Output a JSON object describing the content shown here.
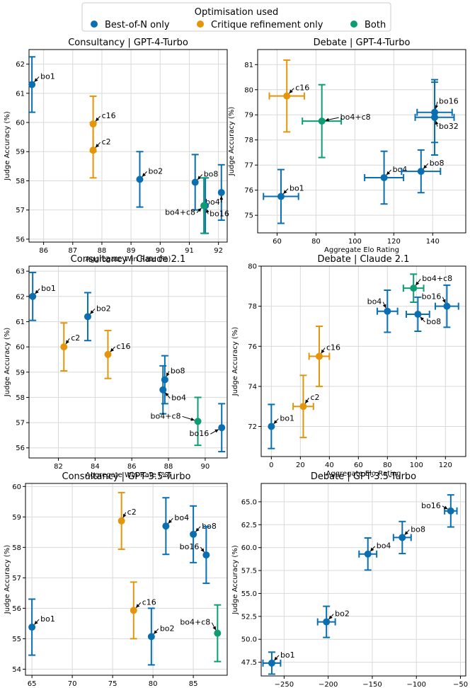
{
  "legend": {
    "title": "Optimisation used",
    "entries": [
      {
        "label": "Best-of-N only",
        "color": "#0a6fb0"
      },
      {
        "label": "Critique refinement only",
        "color": "#e3960b"
      },
      {
        "label": "Both",
        "color": "#0e9c74"
      }
    ]
  },
  "chart_data": [
    {
      "type": "scatter",
      "title": "Consultancy | GPT-4-Turbo",
      "xlabel": "Aggregate Win Rate (%)",
      "ylabel": "Judge Accuracy (%)",
      "xlim": [
        85.5,
        92.3
      ],
      "ylim": [
        55.9,
        62.5
      ],
      "xticks": [
        86,
        87,
        88,
        89,
        90,
        91,
        92
      ],
      "yticks": [
        56,
        57,
        58,
        59,
        60,
        61,
        62
      ],
      "xtick_labels": [
        "86",
        "87",
        "88",
        "89",
        "90",
        "91",
        "92"
      ],
      "ytick_labels": [
        "56",
        "57",
        "58",
        "59",
        "60",
        "61",
        "62"
      ],
      "points": [
        {
          "label": "bo1",
          "x": 85.6,
          "y": 61.3,
          "yerr": 0.95,
          "xerr": 0,
          "group": "bon"
        },
        {
          "label": "c16",
          "x": 87.7,
          "y": 59.95,
          "yerr": 0.95,
          "xerr": 0,
          "group": "critique"
        },
        {
          "label": "c2",
          "x": 87.7,
          "y": 59.05,
          "yerr": 0.95,
          "xerr": 0,
          "group": "critique"
        },
        {
          "label": "bo2",
          "x": 89.3,
          "y": 58.05,
          "yerr": 0.95,
          "xerr": 0,
          "group": "bon"
        },
        {
          "label": "bo8",
          "x": 91.2,
          "y": 57.95,
          "yerr": 0.95,
          "xerr": 0,
          "group": "bon"
        },
        {
          "label": "bo4",
          "x": 92.1,
          "y": 57.6,
          "yerr": 0.95,
          "xerr": 0,
          "group": "bon"
        },
        {
          "label": "bo16",
          "x": 91.55,
          "y": 57.15,
          "yerr": 0.95,
          "xerr": 0,
          "group": "bon"
        },
        {
          "label": "bo4+c8",
          "x": 91.5,
          "y": 57.15,
          "yerr": 0.95,
          "xerr": 0,
          "group": "both"
        }
      ]
    },
    {
      "type": "scatter",
      "title": "Debate | GPT-4-Turbo",
      "xlabel": "Aggregate Elo Rating",
      "ylabel": "Judge Accuracy (%)",
      "xlim": [
        50,
        157
      ],
      "ylim": [
        74.3,
        81.6
      ],
      "xticks": [
        60,
        80,
        100,
        120,
        140
      ],
      "yticks": [
        75,
        76,
        77,
        78,
        79,
        80,
        81
      ],
      "xtick_labels": [
        "60",
        "80",
        "100",
        "120",
        "140"
      ],
      "ytick_labels": [
        "75",
        "76",
        "77",
        "78",
        "79",
        "80",
        "81"
      ],
      "points": [
        {
          "label": "bo1",
          "x": 62,
          "y": 75.75,
          "yerr": 1.07,
          "xerr": 9,
          "group": "bon"
        },
        {
          "label": "c16",
          "x": 65,
          "y": 79.75,
          "yerr": 1.43,
          "xerr": 9,
          "group": "critique"
        },
        {
          "label": "bo4+c8",
          "x": 83,
          "y": 78.75,
          "yerr": 1.45,
          "xerr": 10,
          "group": "both"
        },
        {
          "label": "bo4",
          "x": 115,
          "y": 76.5,
          "yerr": 1.05,
          "xerr": 10,
          "group": "bon"
        },
        {
          "label": "bo8",
          "x": 134,
          "y": 76.75,
          "yerr": 0.85,
          "xerr": 10,
          "group": "bon"
        },
        {
          "label": "bo16",
          "x": 141,
          "y": 79.1,
          "yerr": 1.2,
          "xerr": 9,
          "group": "bon"
        },
        {
          "label": "bo32",
          "x": 141,
          "y": 78.9,
          "yerr": 1.5,
          "xerr": 10,
          "group": "bon"
        }
      ]
    },
    {
      "type": "scatter",
      "title": "Consultancy | Claude 2.1",
      "xlabel": "Aggregate Win Rate (%)",
      "ylabel": "Judge Accuracy (%)",
      "xlim": [
        80.4,
        91.2
      ],
      "ylim": [
        55.6,
        63.2
      ],
      "xticks": [
        82,
        84,
        86,
        88,
        90
      ],
      "yticks": [
        56,
        57,
        58,
        59,
        60,
        61,
        62,
        63
      ],
      "xtick_labels": [
        "82",
        "84",
        "86",
        "88",
        "90"
      ],
      "ytick_labels": [
        "56",
        "57",
        "58",
        "59",
        "60",
        "61",
        "62",
        "63"
      ],
      "points": [
        {
          "label": "bo1",
          "x": 80.6,
          "y": 62.0,
          "yerr": 0.95,
          "xerr": 0,
          "group": "bon"
        },
        {
          "label": "bo2",
          "x": 83.6,
          "y": 61.2,
          "yerr": 0.95,
          "xerr": 0,
          "group": "bon"
        },
        {
          "label": "c2",
          "x": 82.3,
          "y": 60.0,
          "yerr": 0.95,
          "xerr": 0,
          "group": "critique"
        },
        {
          "label": "c16",
          "x": 84.7,
          "y": 59.7,
          "yerr": 0.95,
          "xerr": 0,
          "group": "critique"
        },
        {
          "label": "bo8",
          "x": 87.8,
          "y": 58.7,
          "yerr": 0.95,
          "xerr": 0,
          "group": "bon"
        },
        {
          "label": "bo4",
          "x": 87.7,
          "y": 58.3,
          "yerr": 0.95,
          "xerr": 0,
          "group": "bon"
        },
        {
          "label": "bo4+c8",
          "x": 89.6,
          "y": 57.05,
          "yerr": 0.95,
          "xerr": 0,
          "group": "both"
        },
        {
          "label": "bo16",
          "x": 90.9,
          "y": 56.8,
          "yerr": 0.95,
          "xerr": 0,
          "group": "bon"
        }
      ]
    },
    {
      "type": "scatter",
      "title": "Debate | Claude 2.1",
      "xlabel": "Aggregate Elo Rating",
      "ylabel": "Judge Accuracy (%)",
      "xlim": [
        -7,
        134
      ],
      "ylim": [
        70.5,
        80.0
      ],
      "xticks": [
        0,
        20,
        40,
        60,
        80,
        100,
        120
      ],
      "yticks": [
        72,
        74,
        76,
        78,
        80
      ],
      "xtick_labels": [
        "0",
        "20",
        "40",
        "60",
        "80",
        "100",
        "120"
      ],
      "ytick_labels": [
        "72",
        "74",
        "76",
        "78",
        "80"
      ],
      "points": [
        {
          "label": "bo1",
          "x": 0,
          "y": 72.0,
          "yerr": 1.1,
          "xerr": 0,
          "group": "bon"
        },
        {
          "label": "c2",
          "x": 22,
          "y": 73.0,
          "yerr": 1.55,
          "xerr": 7,
          "group": "critique"
        },
        {
          "label": "c16",
          "x": 33,
          "y": 75.5,
          "yerr": 1.5,
          "xerr": 7,
          "group": "critique"
        },
        {
          "label": "bo4",
          "x": 80,
          "y": 77.75,
          "yerr": 1.05,
          "xerr": 7,
          "group": "bon"
        },
        {
          "label": "bo4+c8",
          "x": 98,
          "y": 78.9,
          "yerr": 0.7,
          "xerr": 7,
          "group": "both"
        },
        {
          "label": "bo16",
          "x": 121,
          "y": 78.0,
          "yerr": 1.05,
          "xerr": 8,
          "group": "bon"
        },
        {
          "label": "bo8",
          "x": 101,
          "y": 77.6,
          "yerr": 0.85,
          "xerr": 8,
          "group": "bon"
        }
      ]
    },
    {
      "type": "scatter",
      "title": "Consultancy | GPT-3.5-Turbo",
      "xlabel": "Aggregate Win Rate (%)",
      "ylabel": "Judge Accuracy (%)",
      "xlim": [
        64.2,
        89.2
      ],
      "ylim": [
        53.8,
        60.1
      ],
      "xticks": [
        65,
        70,
        75,
        80,
        85
      ],
      "yticks": [
        54,
        55,
        56,
        57,
        58,
        59,
        60
      ],
      "xtick_labels": [
        "65",
        "70",
        "75",
        "80",
        "85"
      ],
      "ytick_labels": [
        "54",
        "55",
        "56",
        "57",
        "58",
        "59",
        "60"
      ],
      "points": [
        {
          "label": "bo1",
          "x": 65.0,
          "y": 55.38,
          "yerr": 0.92,
          "xerr": 0,
          "group": "bon"
        },
        {
          "label": "c2",
          "x": 76.1,
          "y": 58.87,
          "yerr": 0.93,
          "xerr": 0,
          "group": "critique"
        },
        {
          "label": "c16",
          "x": 77.6,
          "y": 55.93,
          "yerr": 0.93,
          "xerr": 0,
          "group": "critique"
        },
        {
          "label": "bo2",
          "x": 79.8,
          "y": 55.07,
          "yerr": 0.93,
          "xerr": 0,
          "group": "bon"
        },
        {
          "label": "bo4",
          "x": 81.6,
          "y": 58.7,
          "yerr": 0.93,
          "xerr": 0,
          "group": "bon"
        },
        {
          "label": "bo8",
          "x": 85.0,
          "y": 58.43,
          "yerr": 0.93,
          "xerr": 0,
          "group": "bon"
        },
        {
          "label": "bo16",
          "x": 86.6,
          "y": 57.75,
          "yerr": 0.93,
          "xerr": 0,
          "group": "bon"
        },
        {
          "label": "bo4+c8",
          "x": 88.0,
          "y": 55.18,
          "yerr": 0.93,
          "xerr": 0,
          "group": "both"
        }
      ]
    },
    {
      "type": "scatter",
      "title": "Debate | GPT-3.5-Turbo",
      "xlabel": "Aggregate Elo Rating",
      "ylabel": "Judge Accuracy (%)",
      "xlim": [
        -276,
        -44
      ],
      "ylim": [
        46.0,
        67.0
      ],
      "xticks": [
        -250,
        -200,
        -150,
        -100,
        -50
      ],
      "yticks": [
        47.5,
        50.0,
        52.5,
        55.0,
        57.5,
        60.0,
        62.5,
        65.0
      ],
      "xtick_labels": [
        "−250",
        "−200",
        "−150",
        "−100",
        "−50"
      ],
      "ytick_labels": [
        "47.5",
        "50.0",
        "52.5",
        "55.0",
        "57.5",
        "60.0",
        "62.5",
        "65.0"
      ],
      "points": [
        {
          "label": "bo1",
          "x": -264,
          "y": 47.4,
          "yerr": 1.2,
          "xerr": 10,
          "group": "bon"
        },
        {
          "label": "bo2",
          "x": -202,
          "y": 51.9,
          "yerr": 1.7,
          "xerr": 10,
          "group": "bon"
        },
        {
          "label": "bo4",
          "x": -155,
          "y": 59.3,
          "yerr": 1.75,
          "xerr": 10,
          "group": "bon"
        },
        {
          "label": "bo8",
          "x": -116,
          "y": 61.1,
          "yerr": 1.75,
          "xerr": 10,
          "group": "bon"
        },
        {
          "label": "bo16",
          "x": -61,
          "y": 64.0,
          "yerr": 1.75,
          "xerr": 7,
          "group": "bon"
        }
      ]
    }
  ]
}
